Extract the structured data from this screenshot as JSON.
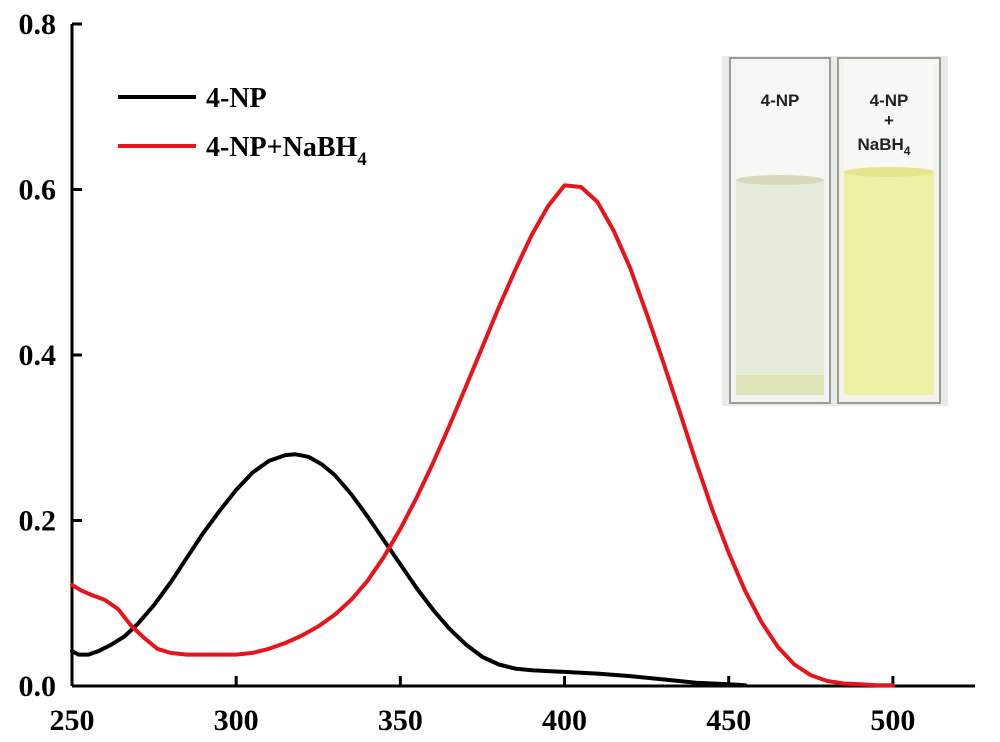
{
  "chart_data": {
    "type": "line",
    "title": "",
    "xlabel": "",
    "ylabel": "",
    "xlim": [
      250,
      525
    ],
    "ylim": [
      0,
      0.8
    ],
    "xticks": [
      250,
      300,
      350,
      400,
      450,
      500
    ],
    "xtick_labels": [
      "250",
      "300",
      "350",
      "400",
      "450",
      "500"
    ],
    "yticks": [
      0,
      0.2,
      0.4,
      0.6,
      0.8
    ],
    "ytick_labels": [
      "0.0",
      "0.2",
      "0.4",
      "0.6",
      "0.8"
    ],
    "grid": false,
    "legend_position": "top-left",
    "series": [
      {
        "name": "4-NP",
        "legend_label": "4-NP",
        "color": "#000000",
        "x": [
          250,
          252,
          255,
          258,
          262,
          266,
          270,
          275,
          280,
          285,
          290,
          295,
          300,
          305,
          310,
          315,
          318,
          322,
          326,
          330,
          335,
          340,
          345,
          350,
          355,
          360,
          365,
          370,
          375,
          380,
          385,
          390,
          395,
          400,
          410,
          420,
          430,
          440,
          450,
          455
        ],
        "y": [
          0.042,
          0.038,
          0.038,
          0.042,
          0.05,
          0.06,
          0.075,
          0.098,
          0.125,
          0.155,
          0.185,
          0.212,
          0.237,
          0.258,
          0.272,
          0.279,
          0.28,
          0.277,
          0.268,
          0.255,
          0.232,
          0.205,
          0.176,
          0.147,
          0.118,
          0.092,
          0.069,
          0.05,
          0.035,
          0.026,
          0.021,
          0.019,
          0.018,
          0.017,
          0.015,
          0.012,
          0.008,
          0.004,
          0.002,
          0.001
        ]
      },
      {
        "name": "4-NP+NaBH4",
        "legend_label_main": "4-NP+NaBH",
        "legend_label_sub": "4",
        "color": "#e8141b",
        "x": [
          250,
          253,
          256,
          260,
          264,
          268,
          272,
          276,
          280,
          285,
          290,
          295,
          300,
          305,
          310,
          315,
          320,
          325,
          330,
          335,
          340,
          345,
          350,
          355,
          360,
          365,
          370,
          375,
          380,
          385,
          390,
          395,
          400,
          405,
          410,
          415,
          420,
          425,
          430,
          435,
          440,
          445,
          450,
          455,
          460,
          465,
          470,
          475,
          480,
          485,
          490,
          495,
          500
        ],
        "y": [
          0.122,
          0.115,
          0.11,
          0.104,
          0.093,
          0.073,
          0.058,
          0.045,
          0.04,
          0.038,
          0.038,
          0.038,
          0.038,
          0.04,
          0.045,
          0.052,
          0.061,
          0.072,
          0.086,
          0.104,
          0.127,
          0.156,
          0.19,
          0.228,
          0.27,
          0.315,
          0.362,
          0.41,
          0.458,
          0.503,
          0.545,
          0.58,
          0.605,
          0.603,
          0.585,
          0.55,
          0.505,
          0.45,
          0.392,
          0.332,
          0.271,
          0.213,
          0.161,
          0.115,
          0.077,
          0.047,
          0.026,
          0.013,
          0.006,
          0.003,
          0.002,
          0.001,
          0.001
        ]
      }
    ],
    "inset": {
      "vial_left_label": "4-NP",
      "vial_right_label_top": "4-NP",
      "vial_right_label_plus": "+",
      "vial_right_label_main": "NaBH",
      "vial_right_label_sub": "4",
      "vial_left_liquid_color": "#e7ecda",
      "vial_right_liquid_color": "#eef0a6"
    }
  }
}
